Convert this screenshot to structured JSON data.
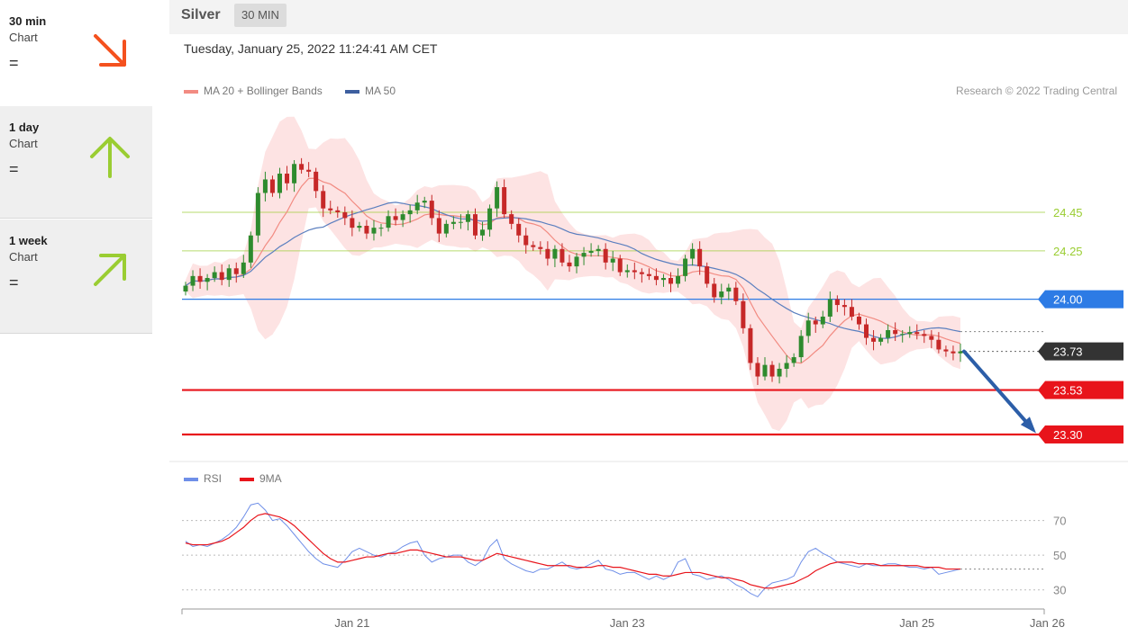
{
  "sidebar": [
    {
      "period": "30 min",
      "sub": "Chart",
      "eq": "=",
      "direction": "down-right",
      "color": "#f4511e"
    },
    {
      "period": "1 day",
      "sub": "Chart",
      "eq": "=",
      "direction": "up",
      "color": "#9acd32"
    },
    {
      "period": "1 week",
      "sub": "Chart",
      "eq": "=",
      "direction": "up-right",
      "color": "#9acd32"
    }
  ],
  "header": {
    "instrument": "Silver",
    "timeframe": "30 MIN",
    "timestamp": "Tuesday, January 25, 2022 11:24:41 AM CET"
  },
  "legend": {
    "ma20": "MA 20 + Bollinger Bands",
    "ma50": "MA 50",
    "rsi": "RSI",
    "ma9": "9MA",
    "copyright": "Research © 2022 Trading Central"
  },
  "colors": {
    "resistance": "#9acd32",
    "pivot": "#2d7be5",
    "support": "#e8141b",
    "current": "#333333",
    "ma20": "#f28b82",
    "ma50": "#5b7fbf",
    "band": "#fde3e3",
    "rsi": "#6f8fe8",
    "up": "#2e8b2e",
    "down": "#c62828",
    "forecast": "#2c5ea8"
  },
  "levels": [
    {
      "value": 24.45,
      "label": "24.45",
      "kind": "resistance"
    },
    {
      "value": 24.25,
      "label": "24.25",
      "kind": "resistance"
    },
    {
      "value": 24.0,
      "label": "24.00",
      "kind": "pivot"
    },
    {
      "value": 23.73,
      "label": "23.73",
      "kind": "current"
    },
    {
      "value": 23.53,
      "label": "23.53",
      "kind": "support"
    },
    {
      "value": 23.3,
      "label": "23.30",
      "kind": "support"
    }
  ],
  "rsi_ticks": [
    {
      "value": 70,
      "label": "70"
    },
    {
      "value": 50,
      "label": "50"
    },
    {
      "value": 30,
      "label": "30"
    }
  ],
  "x_ticks": [
    {
      "index": 23,
      "label": "Jan 21"
    },
    {
      "index": 61,
      "label": "Jan 23"
    },
    {
      "index": 101,
      "label": "Jan 25"
    },
    {
      "index": 119,
      "label": "Jan 26"
    }
  ],
  "chart_data": {
    "type": "candlestick",
    "ylim": [
      23.23,
      24.99
    ],
    "rsi_ylim": [
      20,
      90
    ],
    "closes": [
      24.07,
      24.12,
      24.09,
      24.11,
      24.14,
      24.1,
      24.16,
      24.13,
      24.19,
      24.33,
      24.55,
      24.62,
      24.55,
      24.65,
      24.6,
      24.7,
      24.67,
      24.66,
      24.56,
      24.47,
      24.46,
      24.45,
      24.42,
      24.37,
      24.38,
      24.34,
      24.37,
      24.37,
      24.43,
      24.41,
      24.44,
      24.46,
      24.5,
      24.51,
      24.42,
      24.34,
      24.39,
      24.4,
      24.4,
      24.44,
      24.33,
      24.36,
      24.47,
      24.58,
      24.44,
      24.39,
      24.33,
      24.28,
      24.27,
      24.26,
      24.21,
      24.26,
      24.19,
      24.17,
      24.22,
      24.24,
      24.25,
      24.26,
      24.19,
      24.21,
      24.14,
      24.15,
      24.14,
      24.13,
      24.12,
      24.1,
      24.11,
      24.08,
      24.12,
      24.21,
      24.26,
      24.17,
      24.08,
      24.01,
      24.04,
      24.06,
      23.99,
      23.85,
      23.67,
      23.6,
      23.66,
      23.6,
      23.64,
      23.67,
      23.7,
      23.81,
      23.89,
      23.87,
      23.91,
      24.0,
      23.97,
      23.96,
      23.91,
      23.87,
      23.8,
      23.78,
      23.8,
      23.84,
      23.82,
      23.82,
      23.83,
      23.82,
      23.81,
      23.79,
      23.74,
      23.73,
      23.72,
      23.73
    ],
    "rsi": [
      58,
      55,
      56,
      55,
      57,
      59,
      62,
      66,
      72,
      79,
      80,
      76,
      70,
      71,
      67,
      62,
      57,
      52,
      48,
      45,
      44,
      43,
      47,
      52,
      54,
      52,
      50,
      49,
      51,
      52,
      55,
      57,
      58,
      50,
      46,
      48,
      49,
      50,
      50,
      46,
      44,
      47,
      55,
      59,
      48,
      45,
      43,
      41,
      40,
      42,
      42,
      44,
      46,
      43,
      42,
      43,
      45,
      47,
      42,
      41,
      39,
      40,
      40,
      38,
      36,
      38,
      36,
      38,
      46,
      48,
      39,
      38,
      36,
      37,
      38,
      36,
      33,
      31,
      28,
      26,
      31,
      34,
      35,
      36,
      38,
      46,
      52,
      54,
      51,
      49,
      46,
      45,
      44,
      43,
      45,
      44,
      44,
      45,
      45,
      44,
      43,
      43,
      42,
      43,
      39,
      40,
      41,
      42
    ],
    "rsi_ma": [
      57,
      56,
      56,
      56,
      57,
      58,
      60,
      63,
      66,
      70,
      73,
      74,
      73,
      72,
      70,
      67,
      63,
      59,
      55,
      51,
      48,
      46,
      46,
      47,
      48,
      49,
      49,
      50,
      51,
      51,
      52,
      53,
      53,
      52,
      51,
      50,
      49,
      49,
      49,
      48,
      47,
      47,
      49,
      51,
      50,
      49,
      48,
      47,
      46,
      45,
      44,
      44,
      44,
      44,
      43,
      43,
      43,
      44,
      44,
      43,
      43,
      42,
      41,
      40,
      39,
      39,
      38,
      38,
      39,
      40,
      40,
      40,
      39,
      38,
      37,
      37,
      36,
      35,
      33,
      32,
      31,
      31,
      32,
      33,
      34,
      36,
      38,
      41,
      43,
      45,
      46,
      46,
      46,
      45,
      45,
      45,
      44,
      44,
      44,
      44,
      44,
      44,
      43,
      43,
      43,
      42,
      42,
      42
    ]
  }
}
